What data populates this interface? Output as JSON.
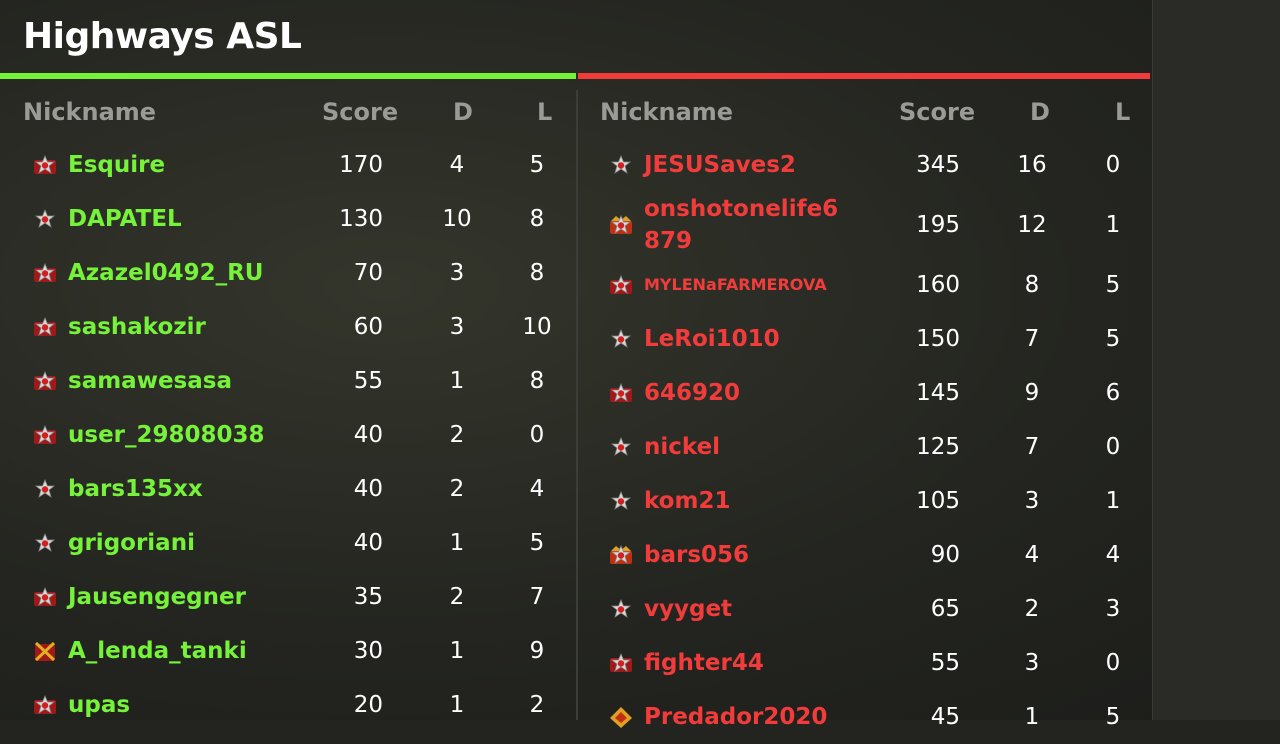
{
  "title": "Highways ASL",
  "colors": {
    "green_team": "#76f23a",
    "red_team": "#f23c3c"
  },
  "headers": {
    "nickname": "Nickname",
    "score": "Score",
    "d": "D",
    "l": "L"
  },
  "green_team": [
    {
      "rank_icon": "rank-badge-icon",
      "nick": "Esquire",
      "score": "170",
      "d": "4",
      "l": "5"
    },
    {
      "rank_icon": "rank-star-icon",
      "nick": "DAPATEL",
      "score": "130",
      "d": "10",
      "l": "8"
    },
    {
      "rank_icon": "rank-badge-icon",
      "nick": "Azazel0492_RU",
      "score": "70",
      "d": "3",
      "l": "8"
    },
    {
      "rank_icon": "rank-badge-icon",
      "nick": "sashakozir",
      "score": "60",
      "d": "3",
      "l": "10"
    },
    {
      "rank_icon": "rank-badge-icon",
      "nick": "samawesasa",
      "score": "55",
      "d": "1",
      "l": "8"
    },
    {
      "rank_icon": "rank-badge-icon",
      "nick": "user_29808038",
      "score": "40",
      "d": "2",
      "l": "0"
    },
    {
      "rank_icon": "rank-star-icon",
      "nick": "bars135xx",
      "score": "40",
      "d": "2",
      "l": "4"
    },
    {
      "rank_icon": "rank-star-icon",
      "nick": "grigoriani",
      "score": "40",
      "d": "1",
      "l": "5"
    },
    {
      "rank_icon": "rank-badge-icon",
      "nick": "Jausengegner",
      "score": "35",
      "d": "2",
      "l": "7"
    },
    {
      "rank_icon": "rank-swords-icon",
      "nick": "A_lenda_tanki",
      "score": "30",
      "d": "1",
      "l": "9"
    },
    {
      "rank_icon": "rank-badge-icon",
      "nick": "upas",
      "score": "20",
      "d": "1",
      "l": "2"
    }
  ],
  "red_team": [
    {
      "rank_icon": "rank-star-icon",
      "nick": "JESUSaves2",
      "score": "345",
      "d": "16",
      "l": "0"
    },
    {
      "rank_icon": "rank-crown-icon",
      "nick": "onshotonelife6\n879",
      "score": "195",
      "d": "12",
      "l": "1"
    },
    {
      "rank_icon": "rank-badge-icon",
      "nick": "MYLENaFARMEROVA",
      "score": "160",
      "d": "8",
      "l": "5"
    },
    {
      "rank_icon": "rank-star-icon",
      "nick": "LeRoi1010",
      "score": "150",
      "d": "7",
      "l": "5"
    },
    {
      "rank_icon": "rank-badge-icon",
      "nick": "646920",
      "score": "145",
      "d": "9",
      "l": "6"
    },
    {
      "rank_icon": "rank-star-icon",
      "nick": "nickel",
      "score": "125",
      "d": "7",
      "l": "0"
    },
    {
      "rank_icon": "rank-star-icon",
      "nick": "kom21",
      "score": "105",
      "d": "3",
      "l": "1"
    },
    {
      "rank_icon": "rank-crown-icon",
      "nick": "bars056",
      "score": "90",
      "d": "4",
      "l": "4"
    },
    {
      "rank_icon": "rank-star-icon",
      "nick": "vyyget",
      "score": "65",
      "d": "2",
      "l": "3"
    },
    {
      "rank_icon": "rank-badge-icon",
      "nick": "fighter44",
      "score": "55",
      "d": "3",
      "l": "0"
    },
    {
      "rank_icon": "rank-diamond-icon",
      "nick": "Predador2020",
      "score": "45",
      "d": "1",
      "l": "5"
    }
  ]
}
